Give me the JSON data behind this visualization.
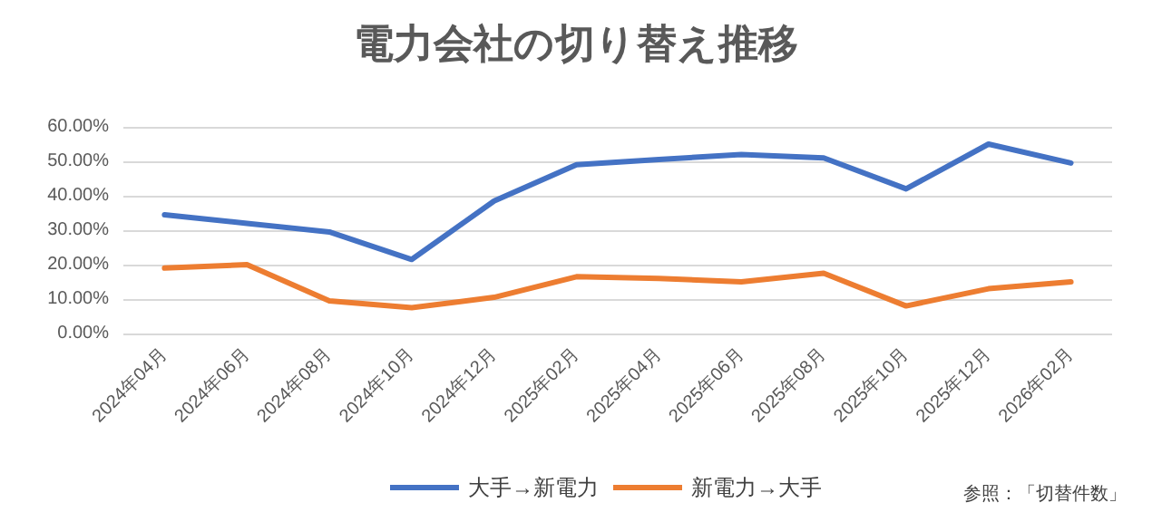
{
  "chart_data": {
    "type": "line",
    "title": "電力会社の切り替え推移",
    "categories": [
      "2024年04月",
      "2024年06月",
      "2024年08月",
      "2024年10月",
      "2024年12月",
      "2025年02月",
      "2025年04月",
      "2025年06月",
      "2025年08月",
      "2025年10月",
      "2025年12月",
      "2026年02月"
    ],
    "series": [
      {
        "name": "大手→新電力",
        "color": "#4472c4",
        "values": [
          34.5,
          32,
          29.5,
          21.5,
          38.5,
          49,
          50.5,
          52,
          51,
          42,
          55,
          49.5
        ]
      },
      {
        "name": "新電力→大手",
        "color": "#ed7d31",
        "values": [
          19,
          20,
          9.5,
          7.5,
          10.5,
          16.5,
          16,
          15,
          17.5,
          8,
          13,
          15
        ]
      }
    ],
    "ylim": [
      0,
      60
    ],
    "yticks": [
      {
        "value": 0,
        "label": "0.00%"
      },
      {
        "value": 10,
        "label": "10.00%"
      },
      {
        "value": 20,
        "label": "20.00%"
      },
      {
        "value": 30,
        "label": "30.00%"
      },
      {
        "value": 40,
        "label": "40.00%"
      },
      {
        "value": 50,
        "label": "50.00%"
      },
      {
        "value": 60,
        "label": "60.00%"
      }
    ],
    "grid": "y",
    "legend": "bottom",
    "marker": "none",
    "line_style": "solid",
    "annotations": [
      "参照：「切替件数」"
    ]
  }
}
